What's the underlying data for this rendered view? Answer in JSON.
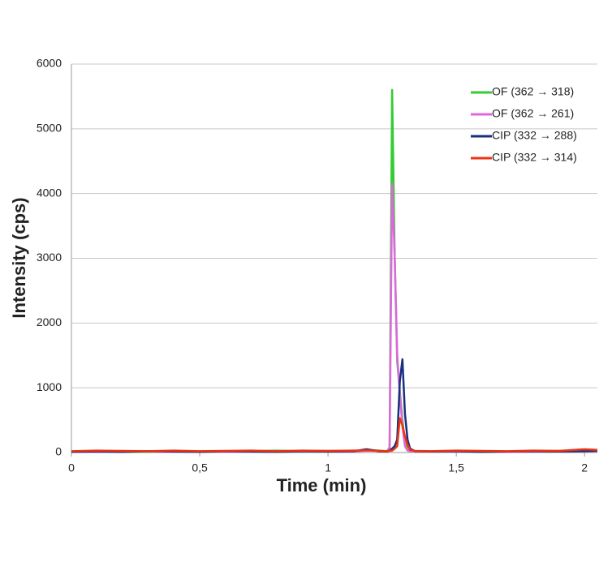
{
  "chart_data": {
    "type": "line",
    "x_label": "Time (min)",
    "y_label": "Intensity (cps)",
    "x": [
      0,
      0.1,
      0.2,
      0.3,
      0.4,
      0.5,
      0.6,
      0.7,
      0.8,
      0.9,
      1.0,
      1.1,
      1.15,
      1.2,
      1.23,
      1.24,
      1.25,
      1.26,
      1.27,
      1.28,
      1.29,
      1.3,
      1.31,
      1.32,
      1.34,
      1.4,
      1.5,
      1.6,
      1.7,
      1.8,
      1.9,
      2.0,
      2.05
    ],
    "series": [
      {
        "name": "OF (362 → 318)",
        "color": "#33cc33",
        "values": [
          10,
          20,
          15,
          10,
          20,
          10,
          15,
          20,
          30,
          20,
          25,
          20,
          40,
          30,
          20,
          80,
          5600,
          3000,
          1400,
          950,
          500,
          150,
          40,
          20,
          15,
          20,
          25,
          10,
          15,
          20,
          25,
          30,
          40
        ]
      },
      {
        "name": "OF (362 → 261)",
        "color": "#e066e0",
        "values": [
          15,
          10,
          20,
          15,
          10,
          20,
          10,
          15,
          20,
          25,
          20,
          15,
          30,
          25,
          20,
          60,
          4150,
          3000,
          1500,
          900,
          400,
          100,
          30,
          20,
          15,
          20,
          15,
          20,
          10,
          15,
          20,
          40,
          30
        ]
      },
      {
        "name": "CIP (332 → 288)",
        "color": "#1a2f80",
        "values": [
          10,
          15,
          10,
          20,
          15,
          10,
          20,
          15,
          10,
          20,
          15,
          20,
          50,
          20,
          15,
          30,
          60,
          100,
          200,
          1100,
          1440,
          600,
          200,
          60,
          20,
          15,
          20,
          10,
          15,
          20,
          15,
          20,
          25
        ]
      },
      {
        "name": "CIP (332 → 314)",
        "color": "#ee3311",
        "values": [
          20,
          30,
          25,
          20,
          30,
          20,
          25,
          30,
          20,
          30,
          25,
          30,
          35,
          25,
          20,
          25,
          30,
          60,
          100,
          530,
          420,
          250,
          120,
          40,
          25,
          20,
          30,
          25,
          20,
          30,
          25,
          50,
          40
        ]
      }
    ],
    "xlim": [
      0,
      2.05
    ],
    "ylim": [
      0,
      6000
    ],
    "xticks": [
      0,
      {
        "value": 0.5,
        "label": "0,5"
      },
      1,
      {
        "value": 1.5,
        "label": "1,5"
      },
      2
    ],
    "yticks": [
      0,
      1000,
      2000,
      3000,
      4000,
      5000,
      6000
    ],
    "grid": true,
    "legend": "upper right"
  }
}
